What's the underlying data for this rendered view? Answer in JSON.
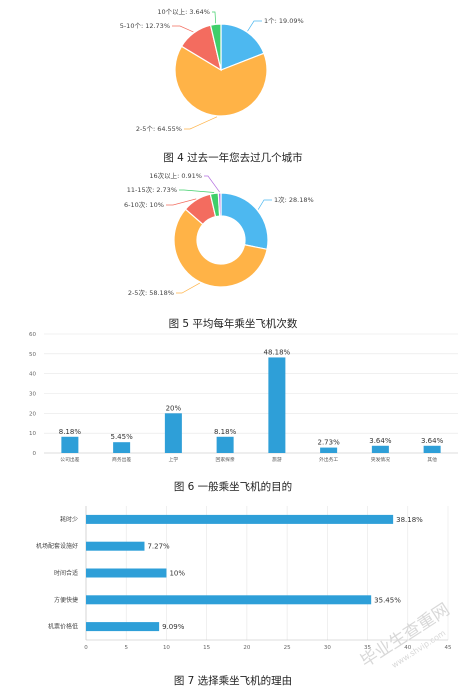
{
  "chart_data": [
    {
      "type": "pie",
      "caption": "图 4 过去一年您去过几个城市",
      "slices": [
        {
          "label": "1个",
          "value": 19.09,
          "text": "1个: 19.09%",
          "color": "#4db8f0"
        },
        {
          "label": "2-5个",
          "value": 64.55,
          "text": "2-5个: 64.55%",
          "color": "#ffb347"
        },
        {
          "label": "5-10个",
          "value": 12.73,
          "text": "5-10个: 12.73%",
          "color": "#f36c5f"
        },
        {
          "label": "10个以上",
          "value": 3.64,
          "text": "10个以上: 3.64%",
          "color": "#3fcf6a"
        }
      ]
    },
    {
      "type": "pie",
      "donut": true,
      "caption": "图 5 平均每年乘坐飞机次数",
      "slices": [
        {
          "label": "1次",
          "value": 28.18,
          "text": "1次: 28.18%",
          "color": "#4db8f0"
        },
        {
          "label": "2-5次",
          "value": 58.18,
          "text": "2-5次: 58.18%",
          "color": "#ffb347"
        },
        {
          "label": "6-10次",
          "value": 10,
          "text": "6-10次: 10%",
          "color": "#f36c5f"
        },
        {
          "label": "11-15次",
          "value": 2.73,
          "text": "11-15次: 2.73%",
          "color": "#3fcf6a"
        },
        {
          "label": "16次以上",
          "value": 0.91,
          "text": "16次以上: 0.91%",
          "color": "#b46fe0"
        }
      ]
    },
    {
      "type": "bar",
      "caption": "图 6 一般乘坐飞机的目的",
      "categories": [
        "公司出差",
        "商务出差",
        "上学",
        "回家探亲",
        "旅游",
        "外出务工",
        "突发情况",
        "其他"
      ],
      "values": [
        8.18,
        5.45,
        20,
        8.18,
        48.18,
        2.73,
        3.64,
        3.64
      ],
      "value_labels": [
        "8.18%",
        "5.45%",
        "20%",
        "8.18%",
        "48.18%",
        "2.73%",
        "3.64%",
        "3.64%"
      ],
      "ylim": [
        0,
        60
      ],
      "yticks": [
        "0",
        "10",
        "20",
        "30",
        "40",
        "50",
        "60"
      ],
      "grid": true,
      "color": "#2e9fd8"
    },
    {
      "type": "bar",
      "orientation": "horizontal",
      "caption": "图 7 选择乘坐飞机的理由",
      "categories": [
        "耗时少",
        "机场配套设施好",
        "时间合适",
        "方便快捷",
        "机票价格低"
      ],
      "values": [
        38.18,
        7.27,
        10,
        35.45,
        9.09
      ],
      "value_labels": [
        "38.18%",
        "7.27%",
        "10%",
        "35.45%",
        "9.09%"
      ],
      "xlim": [
        0,
        45
      ],
      "xticks": [
        "0",
        "5",
        "10",
        "15",
        "20",
        "25",
        "30",
        "35",
        "40",
        "45"
      ],
      "grid": true,
      "color": "#2e9fd8"
    }
  ],
  "watermark": {
    "line1": "毕业生查重网",
    "line2": "www.shvip.com"
  }
}
